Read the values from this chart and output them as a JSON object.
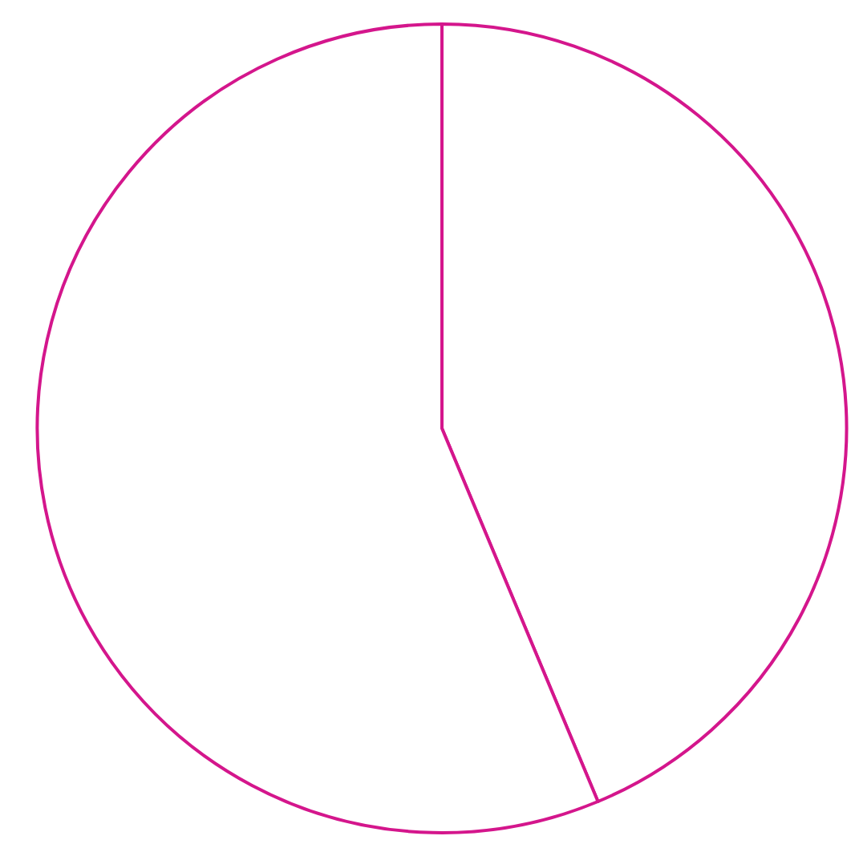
{
  "chart_data": {
    "type": "pie",
    "categories": [
      null,
      null
    ],
    "values": [
      43.7,
      56.3
    ],
    "colors": [
      "#ffffff",
      "#ffffff"
    ],
    "color": "#d4168c",
    "legend": false
  }
}
